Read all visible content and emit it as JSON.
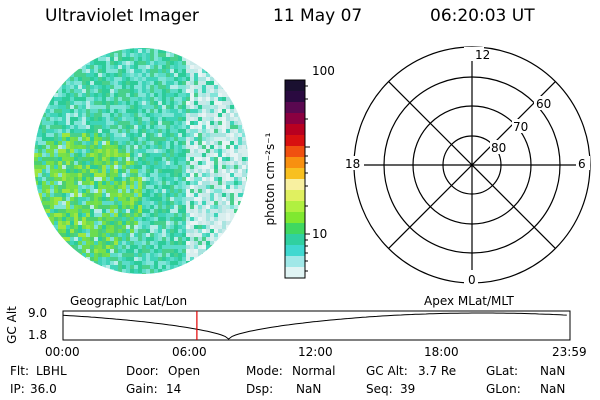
{
  "header": {
    "app_title": "Ultraviolet Imager",
    "date": "11 May 07",
    "time": "06:20:03 UT"
  },
  "image_panel": {
    "description_colors": [
      "#4dd8c8",
      "#7ee0d8",
      "#cfeaea",
      "#2cc880",
      "#5cd860",
      "#8ce840"
    ]
  },
  "colorbar": {
    "unit_label": "photon cm⁻²s⁻¹",
    "tick_labels": [
      "100",
      "10"
    ],
    "colors_top_to_bottom": [
      "#1a1030",
      "#2a0a40",
      "#5a0850",
      "#8a0040",
      "#b80020",
      "#d81010",
      "#f05010",
      "#f89010",
      "#f8c020",
      "#f8f0a0",
      "#e0f060",
      "#b0f040",
      "#80e830",
      "#40d860",
      "#30d0a0",
      "#40d8d0",
      "#a0e8e8",
      "#e0f4f4"
    ]
  },
  "polar": {
    "labels": {
      "top": "12",
      "bottom": "0",
      "left": "18",
      "right": "6"
    },
    "lat_labels": [
      "60",
      "70",
      "80"
    ]
  },
  "timeline": {
    "left_title": "Geographic Lat/Lon",
    "right_title": "Apex MLat/MLT",
    "y_axis_label": "GC Alt",
    "y_ticks": [
      "9.0",
      "1.8"
    ],
    "x_ticks": [
      "00:00",
      "06:00",
      "12:00",
      "18:00",
      "23:59"
    ],
    "current_marker_time": "06:20",
    "marker_color": "#e00000"
  },
  "info": {
    "row1": [
      {
        "label": "Flt:",
        "value": "LBHL"
      },
      {
        "label": "Door:",
        "value": "Open"
      },
      {
        "label": "Mode:",
        "value": "Normal"
      },
      {
        "label": "GC Alt:",
        "value": "3.7 Re"
      },
      {
        "label": "GLat:",
        "value": "NaN"
      }
    ],
    "row2": [
      {
        "label": "IP:",
        "value": "36.0"
      },
      {
        "label": "Gain:",
        "value": "14"
      },
      {
        "label": "Dsp:",
        "value": "NaN"
      },
      {
        "label": "Seq:",
        "value": "39"
      },
      {
        "label": "GLon:",
        "value": "NaN"
      }
    ]
  }
}
